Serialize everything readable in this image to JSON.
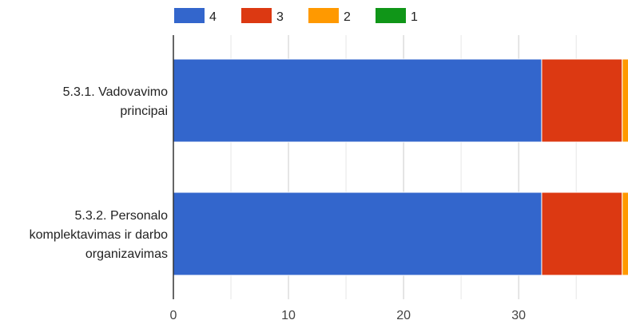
{
  "chart_data": {
    "type": "bar",
    "orientation": "horizontal",
    "stacked": true,
    "categories": [
      [
        "5.3.1. Vadovavimo",
        "principai"
      ],
      [
        "5.3.2. Personalo",
        "komplektavimas ir darbo",
        "organizavimas"
      ]
    ],
    "series": [
      {
        "name": "4",
        "color": "#3366cc",
        "values": [
          32,
          32
        ]
      },
      {
        "name": "3",
        "color": "#dc3912",
        "values": [
          7,
          7
        ]
      },
      {
        "name": "2",
        "color": "#ff9900",
        "values": [
          1,
          1
        ]
      },
      {
        "name": "1",
        "color": "#109618",
        "values": [
          0.1,
          0
        ]
      }
    ],
    "xlim": [
      0,
      39.5
    ],
    "xticks": [
      0,
      10,
      20,
      30
    ],
    "grid": true,
    "legend": "top-left",
    "title": "",
    "xlabel": "",
    "ylabel": ""
  }
}
